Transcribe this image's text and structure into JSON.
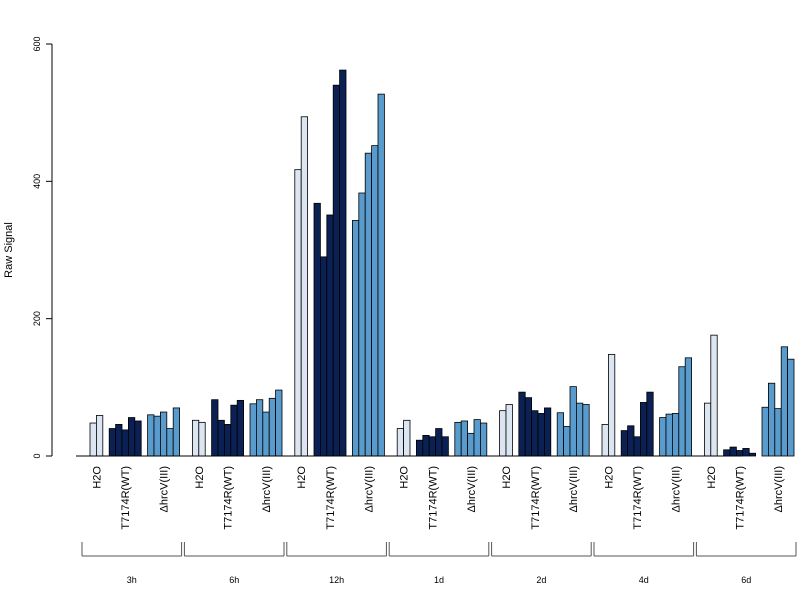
{
  "chart_data": {
    "type": "bar",
    "ylabel": "Raw Signal",
    "ylim": [
      0,
      600
    ],
    "yticks": [
      0,
      200,
      400,
      600
    ],
    "groups": [
      {
        "label": "3h",
        "subgroups": [
          {
            "label": "H2O",
            "color": "#dce6f2",
            "values": [
              48,
              59
            ]
          },
          {
            "label": "T7174R(WT)",
            "color": "#0b2154",
            "values": [
              40,
              46,
              38,
              56,
              51
            ]
          },
          {
            "label": "ΔhrcV(III)",
            "color": "#5a9bcd",
            "values": [
              60,
              58,
              64,
              40,
              70
            ]
          }
        ]
      },
      {
        "label": "6h",
        "subgroups": [
          {
            "label": "H2O",
            "color": "#dce6f2",
            "values": [
              52,
              49
            ]
          },
          {
            "label": "T7174R(WT)",
            "color": "#0b2154",
            "values": [
              82,
              52,
              46,
              74,
              81
            ]
          },
          {
            "label": "ΔhrcV(III)",
            "color": "#5a9bcd",
            "values": [
              76,
              82,
              64,
              84,
              96
            ]
          }
        ]
      },
      {
        "label": "12h",
        "subgroups": [
          {
            "label": "H2O",
            "color": "#dce6f2",
            "values": [
              417,
              494
            ]
          },
          {
            "label": "T7174R(WT)",
            "color": "#0b2154",
            "values": [
              368,
              290,
              351,
              540,
              562
            ]
          },
          {
            "label": "ΔhrcV(III)",
            "color": "#5a9bcd",
            "values": [
              343,
              383,
              441,
              452,
              527
            ]
          }
        ]
      },
      {
        "label": "1d",
        "subgroups": [
          {
            "label": "H2O",
            "color": "#dce6f2",
            "values": [
              40,
              52
            ]
          },
          {
            "label": "T7174R(WT)",
            "color": "#0b2154",
            "values": [
              23,
              30,
              28,
              40,
              28
            ]
          },
          {
            "label": "ΔhrcV(III)",
            "color": "#5a9bcd",
            "values": [
              49,
              51,
              33,
              53,
              48
            ]
          }
        ]
      },
      {
        "label": "2d",
        "subgroups": [
          {
            "label": "H2O",
            "color": "#dce6f2",
            "values": [
              66,
              75
            ]
          },
          {
            "label": "T7174R(WT)",
            "color": "#0b2154",
            "values": [
              93,
              85,
              66,
              62,
              70
            ]
          },
          {
            "label": "ΔhrcV(III)",
            "color": "#5a9bcd",
            "values": [
              63,
              43,
              101,
              77,
              75
            ]
          }
        ]
      },
      {
        "label": "4d",
        "subgroups": [
          {
            "label": "H2O",
            "color": "#dce6f2",
            "values": [
              46,
              148
            ]
          },
          {
            "label": "T7174R(WT)",
            "color": "#0b2154",
            "values": [
              37,
              44,
              28,
              78,
              93
            ]
          },
          {
            "label": "ΔhrcV(III)",
            "color": "#5a9bcd",
            "values": [
              56,
              61,
              62,
              130,
              143
            ]
          }
        ]
      },
      {
        "label": "6d",
        "subgroups": [
          {
            "label": "H2O",
            "color": "#dce6f2",
            "values": [
              77,
              176
            ]
          },
          {
            "label": "T7174R(WT)",
            "color": "#0b2154",
            "values": [
              9,
              13,
              8,
              11,
              4
            ]
          },
          {
            "label": "ΔhrcV(III)",
            "color": "#5a9bcd",
            "values": [
              71,
              106,
              69,
              159,
              141
            ]
          }
        ]
      }
    ]
  }
}
